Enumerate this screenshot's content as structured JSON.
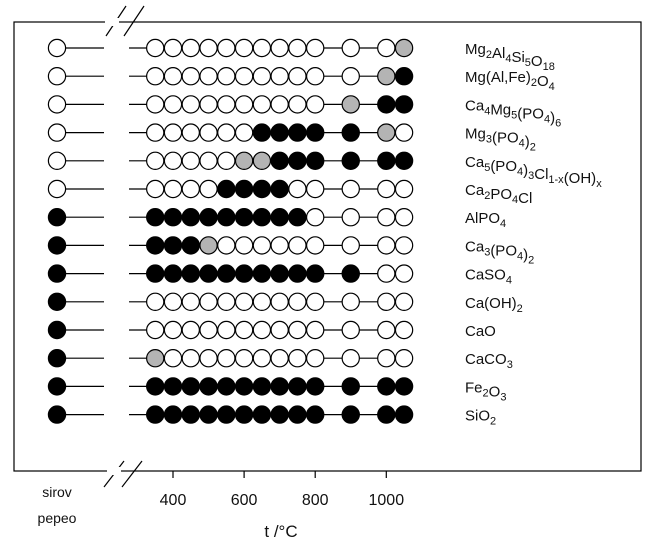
{
  "chart_data": {
    "type": "scatter",
    "xlabel": "t /°C",
    "raw_label_line1": "sirov",
    "raw_label_line2": "pepeo",
    "x_ticks": [
      400,
      600,
      800,
      1000
    ],
    "x_values": [
      350,
      400,
      450,
      500,
      550,
      600,
      650,
      700,
      750,
      800,
      900,
      1000,
      1050
    ],
    "state_colors": {
      "absent": "#ffffff",
      "partial": "#b4b4b4",
      "present": "#000000"
    },
    "rows": [
      {
        "name": [
          [
            "Mg",
            ""
          ],
          [
            "2",
            "sub"
          ],
          [
            "Al",
            ""
          ],
          [
            "4",
            "sub"
          ],
          [
            "Si",
            ""
          ],
          [
            "5",
            "sub"
          ],
          [
            "O",
            ""
          ],
          [
            "18",
            "sub"
          ]
        ],
        "raw": "absent",
        "values": [
          "absent",
          "absent",
          "absent",
          "absent",
          "absent",
          "absent",
          "absent",
          "absent",
          "absent",
          "absent",
          "absent",
          "absent",
          "partial"
        ]
      },
      {
        "name": [
          [
            "Mg(Al,Fe)",
            ""
          ],
          [
            "2",
            "sub"
          ],
          [
            "O",
            ""
          ],
          [
            "4",
            "sub"
          ]
        ],
        "raw": "absent",
        "values": [
          "absent",
          "absent",
          "absent",
          "absent",
          "absent",
          "absent",
          "absent",
          "absent",
          "absent",
          "absent",
          "absent",
          "partial",
          "present"
        ]
      },
      {
        "name": [
          [
            "Ca",
            ""
          ],
          [
            "4",
            "sub"
          ],
          [
            "Mg",
            ""
          ],
          [
            "5",
            "sub"
          ],
          [
            "(PO",
            ""
          ],
          [
            "4",
            "sub"
          ],
          [
            ")",
            ""
          ],
          [
            "6",
            "sub"
          ]
        ],
        "raw": "absent",
        "values": [
          "absent",
          "absent",
          "absent",
          "absent",
          "absent",
          "absent",
          "absent",
          "absent",
          "absent",
          "absent",
          "partial",
          "present",
          "present"
        ]
      },
      {
        "name": [
          [
            "Mg",
            ""
          ],
          [
            "3",
            "sub"
          ],
          [
            "(PO",
            ""
          ],
          [
            "4",
            "sub"
          ],
          [
            ")",
            ""
          ],
          [
            "2",
            "sub"
          ]
        ],
        "raw": "absent",
        "values": [
          "absent",
          "absent",
          "absent",
          "absent",
          "absent",
          "absent",
          "present",
          "present",
          "present",
          "present",
          "present",
          "partial",
          "absent"
        ]
      },
      {
        "name": [
          [
            "Ca",
            ""
          ],
          [
            "5",
            "sub"
          ],
          [
            "(PO",
            ""
          ],
          [
            "4",
            "sub"
          ],
          [
            ")",
            ""
          ],
          [
            "3",
            "sub"
          ],
          [
            "Cl",
            ""
          ],
          [
            "1-x",
            "sub"
          ],
          [
            "(OH)",
            ""
          ],
          [
            "x",
            "sub"
          ]
        ],
        "raw": "absent",
        "values": [
          "absent",
          "absent",
          "absent",
          "absent",
          "absent",
          "partial",
          "partial",
          "present",
          "present",
          "present",
          "present",
          "present",
          "present"
        ]
      },
      {
        "name": [
          [
            "Ca",
            ""
          ],
          [
            "2",
            "sub"
          ],
          [
            "PO",
            ""
          ],
          [
            "4",
            "sub"
          ],
          [
            "Cl",
            ""
          ]
        ],
        "raw": "absent",
        "values": [
          "absent",
          "absent",
          "absent",
          "absent",
          "present",
          "present",
          "present",
          "present",
          "absent",
          "absent",
          "absent",
          "absent",
          "absent"
        ]
      },
      {
        "name": [
          [
            "AlPO",
            ""
          ],
          [
            "4",
            "sub"
          ]
        ],
        "raw": "present",
        "values": [
          "present",
          "present",
          "present",
          "present",
          "present",
          "present",
          "present",
          "present",
          "present",
          "absent",
          "absent",
          "absent",
          "absent"
        ]
      },
      {
        "name": [
          [
            "Ca",
            ""
          ],
          [
            "3",
            "sub"
          ],
          [
            "(PO",
            ""
          ],
          [
            "4",
            "sub"
          ],
          [
            ")",
            ""
          ],
          [
            "2",
            "sub"
          ]
        ],
        "raw": "present",
        "values": [
          "present",
          "present",
          "present",
          "partial",
          "absent",
          "absent",
          "absent",
          "absent",
          "absent",
          "absent",
          "absent",
          "absent",
          "absent"
        ]
      },
      {
        "name": [
          [
            "CaSO",
            ""
          ],
          [
            "4",
            "sub"
          ]
        ],
        "raw": "present",
        "values": [
          "present",
          "present",
          "present",
          "present",
          "present",
          "present",
          "present",
          "present",
          "present",
          "present",
          "present",
          "absent",
          "absent"
        ]
      },
      {
        "name": [
          [
            "Ca(OH)",
            ""
          ],
          [
            "2",
            "sub"
          ]
        ],
        "raw": "present",
        "values": [
          "absent",
          "absent",
          "absent",
          "absent",
          "absent",
          "absent",
          "absent",
          "absent",
          "absent",
          "absent",
          "absent",
          "absent",
          "absent"
        ]
      },
      {
        "name": [
          [
            "CaO",
            ""
          ]
        ],
        "raw": "present",
        "values": [
          "absent",
          "absent",
          "absent",
          "absent",
          "absent",
          "absent",
          "absent",
          "absent",
          "absent",
          "absent",
          "absent",
          "absent",
          "absent"
        ]
      },
      {
        "name": [
          [
            "CaCO",
            ""
          ],
          [
            "3",
            "sub"
          ]
        ],
        "raw": "present",
        "values": [
          "partial",
          "absent",
          "absent",
          "absent",
          "absent",
          "absent",
          "absent",
          "absent",
          "absent",
          "absent",
          "absent",
          "absent",
          "absent"
        ]
      },
      {
        "name": [
          [
            "Fe",
            ""
          ],
          [
            "2",
            "sub"
          ],
          [
            "O",
            ""
          ],
          [
            "3",
            "sub"
          ]
        ],
        "raw": "present",
        "values": [
          "present",
          "present",
          "present",
          "present",
          "present",
          "present",
          "present",
          "present",
          "present",
          "present",
          "present",
          "present",
          "present"
        ]
      },
      {
        "name": [
          [
            "SiO",
            ""
          ],
          [
            "2",
            "sub"
          ]
        ],
        "raw": "present",
        "values": [
          "present",
          "present",
          "present",
          "present",
          "present",
          "present",
          "present",
          "present",
          "present",
          "present",
          "present",
          "present",
          "present"
        ]
      }
    ]
  }
}
